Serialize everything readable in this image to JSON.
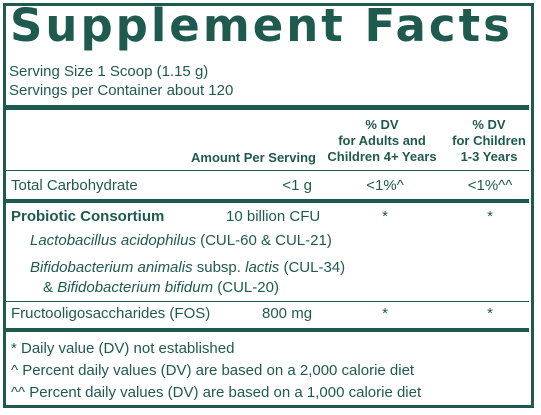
{
  "title": "Supplement Facts",
  "serving_size": "Serving Size 1 Scoop (1.15 g)",
  "servings_per_container": "Servings per Container about 120",
  "columns": {
    "amount": "Amount Per Serving",
    "dv_adults": [
      "% DV",
      "for Adults and",
      "Children 4+ Years"
    ],
    "dv_children": [
      "% DV",
      "for Children",
      "1-3 Years"
    ]
  },
  "rows": {
    "total_carb": {
      "name": "Total Carbohydrate",
      "amount": "<1 g",
      "dv_adults": "<1%^",
      "dv_children": "<1%^^"
    },
    "probiotic": {
      "name": "Probiotic Consortium",
      "amount": "10 billion CFU",
      "dv_adults": "*",
      "dv_children": "*"
    },
    "lacto": {
      "italic": "Lactobacillus acidophilus",
      "rest": " (CUL-60 & CUL-21)"
    },
    "bifido": {
      "line1_a": "Bifidobacterium animalis",
      "line1_b": " subsp. ",
      "line1_c": "lactis",
      "line1_d": " (CUL-34)",
      "line2_a": "& ",
      "line2_b": "Bifidobacterium bifidum",
      "line2_c": " (CUL-20)"
    },
    "fos": {
      "name": "Fructooligosaccharides (FOS)",
      "amount": "800 mg",
      "dv_adults": "*",
      "dv_children": "*"
    }
  },
  "footnotes": [
    "* Daily value (DV) not established",
    "^ Percent daily values (DV) are based on a 2,000 calorie diet",
    "^^ Percent daily values (DV) are based on a 1,000 calorie diet"
  ],
  "colors": {
    "ink": "#1f5a4e",
    "background": "#ffffff"
  }
}
